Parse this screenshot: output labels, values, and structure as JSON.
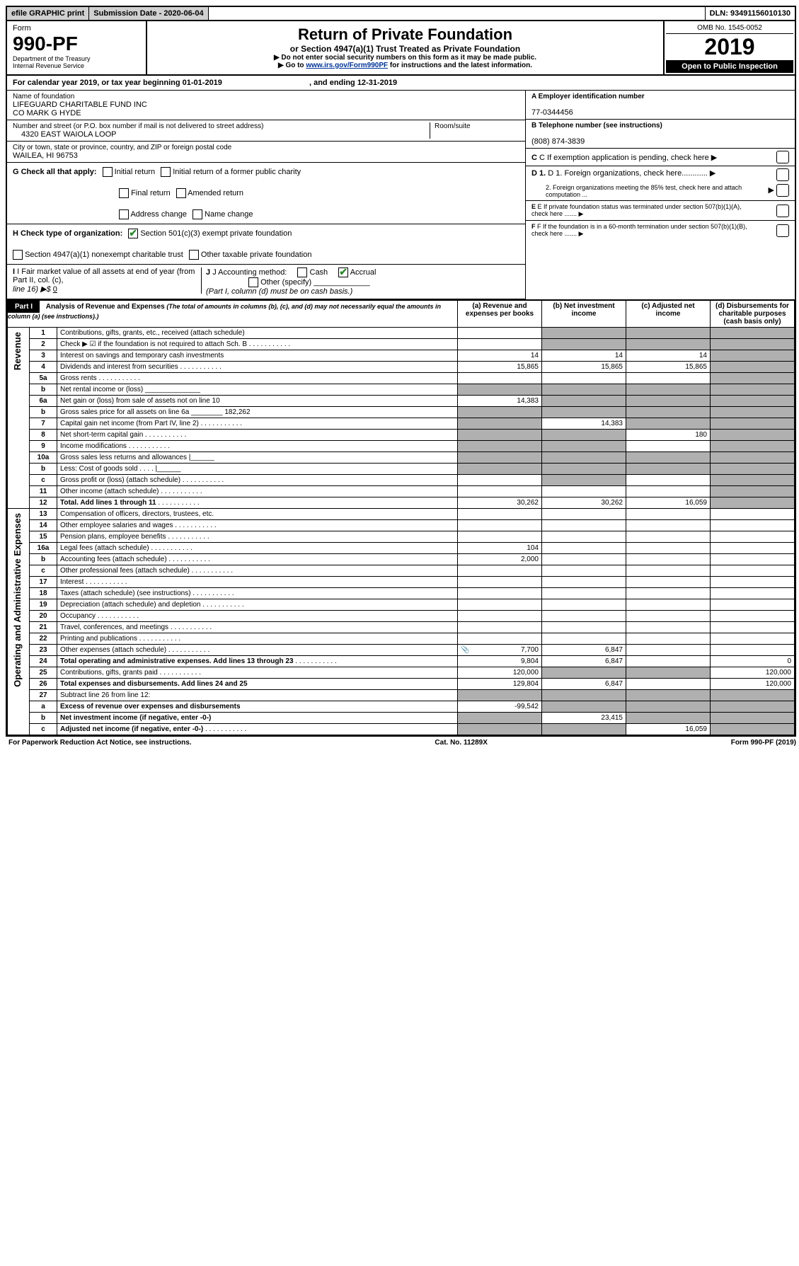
{
  "topbar": {
    "efile": "efile GRAPHIC print",
    "sub_label": "Submission Date - 2020-06-04",
    "dln": "DLN: 93491156010130"
  },
  "header": {
    "form_word": "Form",
    "form_no": "990-PF",
    "dept": "Department of the Treasury",
    "irs": "Internal Revenue Service",
    "title": "Return of Private Foundation",
    "subtitle": "or Section 4947(a)(1) Trust Treated as Private Foundation",
    "note1": "▶ Do not enter social security numbers on this form as it may be made public.",
    "note2_pre": "▶ Go to ",
    "note2_link": "www.irs.gov/Form990PF",
    "note2_post": " for instructions and the latest information.",
    "omb": "OMB No. 1545-0052",
    "year": "2019",
    "inspection": "Open to Public Inspection"
  },
  "calyear": {
    "text": "For calendar year 2019, or tax year beginning 01-01-2019",
    "end": ", and ending 12-31-2019"
  },
  "id": {
    "name_label": "Name of foundation",
    "name1": "LIFEGUARD CHARITABLE FUND INC",
    "name2": "CO MARK G HYDE",
    "addr_label": "Number and street (or P.O. box number if mail is not delivered to street address)",
    "room_label": "Room/suite",
    "addr": "4320 EAST WAIOLA LOOP",
    "city_label": "City or town, state or province, country, and ZIP or foreign postal code",
    "city": "WAILEA, HI  96753",
    "a_label": "A Employer identification number",
    "a_val": "77-0344456",
    "b_label": "B Telephone number (see instructions)",
    "b_val": "(808) 874-3839",
    "c_label": "C  If exemption application is pending, check here",
    "d1": "D 1. Foreign organizations, check here............",
    "d2": "2. Foreign organizations meeting the 85% test, check here and attach computation ...",
    "e": "E  If private foundation status was terminated under section 507(b)(1)(A), check here .......",
    "f": "F  If the foundation is in a 60-month termination under section 507(b)(1)(B), check here .......",
    "g_label": "G Check all that apply:",
    "g_opts": [
      "Initial return",
      "Initial return of a former public charity",
      "Final return",
      "Amended return",
      "Address change",
      "Name change"
    ],
    "h_label": "H Check type of organization:",
    "h1": "Section 501(c)(3) exempt private foundation",
    "h2": "Section 4947(a)(1) nonexempt charitable trust",
    "h3": "Other taxable private foundation",
    "i_label": "I Fair market value of all assets at end of year (from Part II, col. (c),",
    "i_line": "line 16) ▶$ ",
    "i_val": "0",
    "j_label": "J Accounting method:",
    "j_cash": "Cash",
    "j_accrual": "Accrual",
    "j_other": "Other (specify)",
    "j_note": "(Part I, column (d) must be on cash basis.)"
  },
  "part1": {
    "label": "Part I",
    "title": "Analysis of Revenue and Expenses",
    "title_note": "(The total of amounts in columns (b), (c), and (d) may not necessarily equal the amounts in column (a) (see instructions).)",
    "col_a": "(a)   Revenue and expenses per books",
    "col_b": "(b)  Net investment income",
    "col_c": "(c)  Adjusted net income",
    "col_d": "(d)  Disbursements for charitable purposes (cash basis only)",
    "revenue_label": "Revenue",
    "expenses_label": "Operating and Administrative Expenses"
  },
  "rows": [
    {
      "n": "1",
      "d": "Contributions, gifts, grants, etc., received (attach schedule)",
      "a": "",
      "b": "",
      "c": "",
      "dd": "",
      "sb": true,
      "sc": true,
      "sd": true
    },
    {
      "n": "2",
      "d": "Check ▶ ☑ if the foundation is not required to attach Sch. B",
      "a": "",
      "b": "",
      "c": "",
      "dd": "",
      "dots": true,
      "sb": true,
      "sc": true,
      "sd": true
    },
    {
      "n": "3",
      "d": "Interest on savings and temporary cash investments",
      "a": "14",
      "b": "14",
      "c": "14",
      "dd": "",
      "sd": true
    },
    {
      "n": "4",
      "d": "Dividends and interest from securities",
      "a": "15,865",
      "b": "15,865",
      "c": "15,865",
      "dd": "",
      "dots": true,
      "sd": true
    },
    {
      "n": "5a",
      "d": "Gross rents",
      "a": "",
      "b": "",
      "c": "",
      "dd": "",
      "dots": true,
      "sd": true
    },
    {
      "n": "b",
      "d": "Net rental income or (loss)    ______________",
      "a": "",
      "b": "",
      "c": "",
      "dd": "",
      "sa": true,
      "sb": true,
      "sc": true,
      "sd": true
    },
    {
      "n": "6a",
      "d": "Net gain or (loss) from sale of assets not on line 10",
      "a": "14,383",
      "b": "",
      "c": "",
      "dd": "",
      "sb": true,
      "sc": true,
      "sd": true
    },
    {
      "n": "b",
      "d": "Gross sales price for all assets on line 6a ________ 182,262",
      "a": "",
      "b": "",
      "c": "",
      "dd": "",
      "sa": true,
      "sb": true,
      "sc": true,
      "sd": true
    },
    {
      "n": "7",
      "d": "Capital gain net income (from Part IV, line 2)",
      "a": "",
      "b": "14,383",
      "c": "",
      "dd": "",
      "dots": true,
      "sa": true,
      "sc": true,
      "sd": true
    },
    {
      "n": "8",
      "d": "Net short-term capital gain",
      "a": "",
      "b": "",
      "c": "180",
      "dd": "",
      "dots": true,
      "sa": true,
      "sb": true,
      "sd": true
    },
    {
      "n": "9",
      "d": "Income modifications",
      "a": "",
      "b": "",
      "c": "",
      "dd": "",
      "dots": true,
      "sa": true,
      "sb": true,
      "sd": true
    },
    {
      "n": "10a",
      "d": "Gross sales less returns and allowances  |______",
      "a": "",
      "b": "",
      "c": "",
      "dd": "",
      "sa": true,
      "sb": true,
      "sc": true,
      "sd": true
    },
    {
      "n": "b",
      "d": "Less: Cost of goods sold   . . . .  |______",
      "a": "",
      "b": "",
      "c": "",
      "dd": "",
      "sa": true,
      "sb": true,
      "sc": true,
      "sd": true
    },
    {
      "n": "c",
      "d": "Gross profit or (loss) (attach schedule)",
      "a": "",
      "b": "",
      "c": "",
      "dd": "",
      "dots": true,
      "sb": true,
      "sd": true
    },
    {
      "n": "11",
      "d": "Other income (attach schedule)",
      "a": "",
      "b": "",
      "c": "",
      "dd": "",
      "dots": true,
      "sd": true
    },
    {
      "n": "12",
      "d": "Total. Add lines 1 through 11",
      "a": "30,262",
      "b": "30,262",
      "c": "16,059",
      "dd": "",
      "dots": true,
      "bold": true,
      "sd": true
    }
  ],
  "exp_rows": [
    {
      "n": "13",
      "d": "Compensation of officers, directors, trustees, etc."
    },
    {
      "n": "14",
      "d": "Other employee salaries and wages",
      "dots": true
    },
    {
      "n": "15",
      "d": "Pension plans, employee benefits",
      "dots": true
    },
    {
      "n": "16a",
      "d": "Legal fees (attach schedule)",
      "a": "104",
      "dots": true
    },
    {
      "n": "b",
      "d": "Accounting fees (attach schedule)",
      "a": "2,000",
      "dots": true
    },
    {
      "n": "c",
      "d": "Other professional fees (attach schedule)",
      "dots": true
    },
    {
      "n": "17",
      "d": "Interest",
      "dots": true
    },
    {
      "n": "18",
      "d": "Taxes (attach schedule) (see instructions)",
      "dots": true
    },
    {
      "n": "19",
      "d": "Depreciation (attach schedule) and depletion",
      "dots": true
    },
    {
      "n": "20",
      "d": "Occupancy",
      "dots": true
    },
    {
      "n": "21",
      "d": "Travel, conferences, and meetings",
      "dots": true
    },
    {
      "n": "22",
      "d": "Printing and publications",
      "dots": true
    },
    {
      "n": "23",
      "d": "Other expenses (attach schedule)",
      "a": "7,700",
      "b": "6,847",
      "dots": true,
      "icon": true
    },
    {
      "n": "24",
      "d": "Total operating and administrative expenses. Add lines 13 through 23",
      "a": "9,804",
      "b": "6,847",
      "dd": "0",
      "dots": true,
      "bold": true
    },
    {
      "n": "25",
      "d": "Contributions, gifts, grants paid",
      "a": "120,000",
      "dd": "120,000",
      "dots": true,
      "sb": true,
      "sc": true
    },
    {
      "n": "26",
      "d": "Total expenses and disbursements. Add lines 24 and 25",
      "a": "129,804",
      "b": "6,847",
      "dd": "120,000",
      "bold": true
    },
    {
      "n": "27",
      "d": "Subtract line 26 from line 12:",
      "sa": true,
      "sb": true,
      "sc": true,
      "sd": true
    },
    {
      "n": "a",
      "d": "Excess of revenue over expenses and disbursements",
      "a": "-99,542",
      "bold": true,
      "sb": true,
      "sc": true,
      "sd": true
    },
    {
      "n": "b",
      "d": "Net investment income (if negative, enter -0-)",
      "b": "23,415",
      "bold": true,
      "sa": true,
      "sc": true,
      "sd": true
    },
    {
      "n": "c",
      "d": "Adjusted net income (if negative, enter -0-)",
      "c": "16,059",
      "bold": true,
      "dots": true,
      "sa": true,
      "sb": true,
      "sd": true
    }
  ],
  "footer": {
    "left": "For Paperwork Reduction Act Notice, see instructions.",
    "mid": "Cat. No. 11289X",
    "right": "Form 990-PF (2019)"
  }
}
